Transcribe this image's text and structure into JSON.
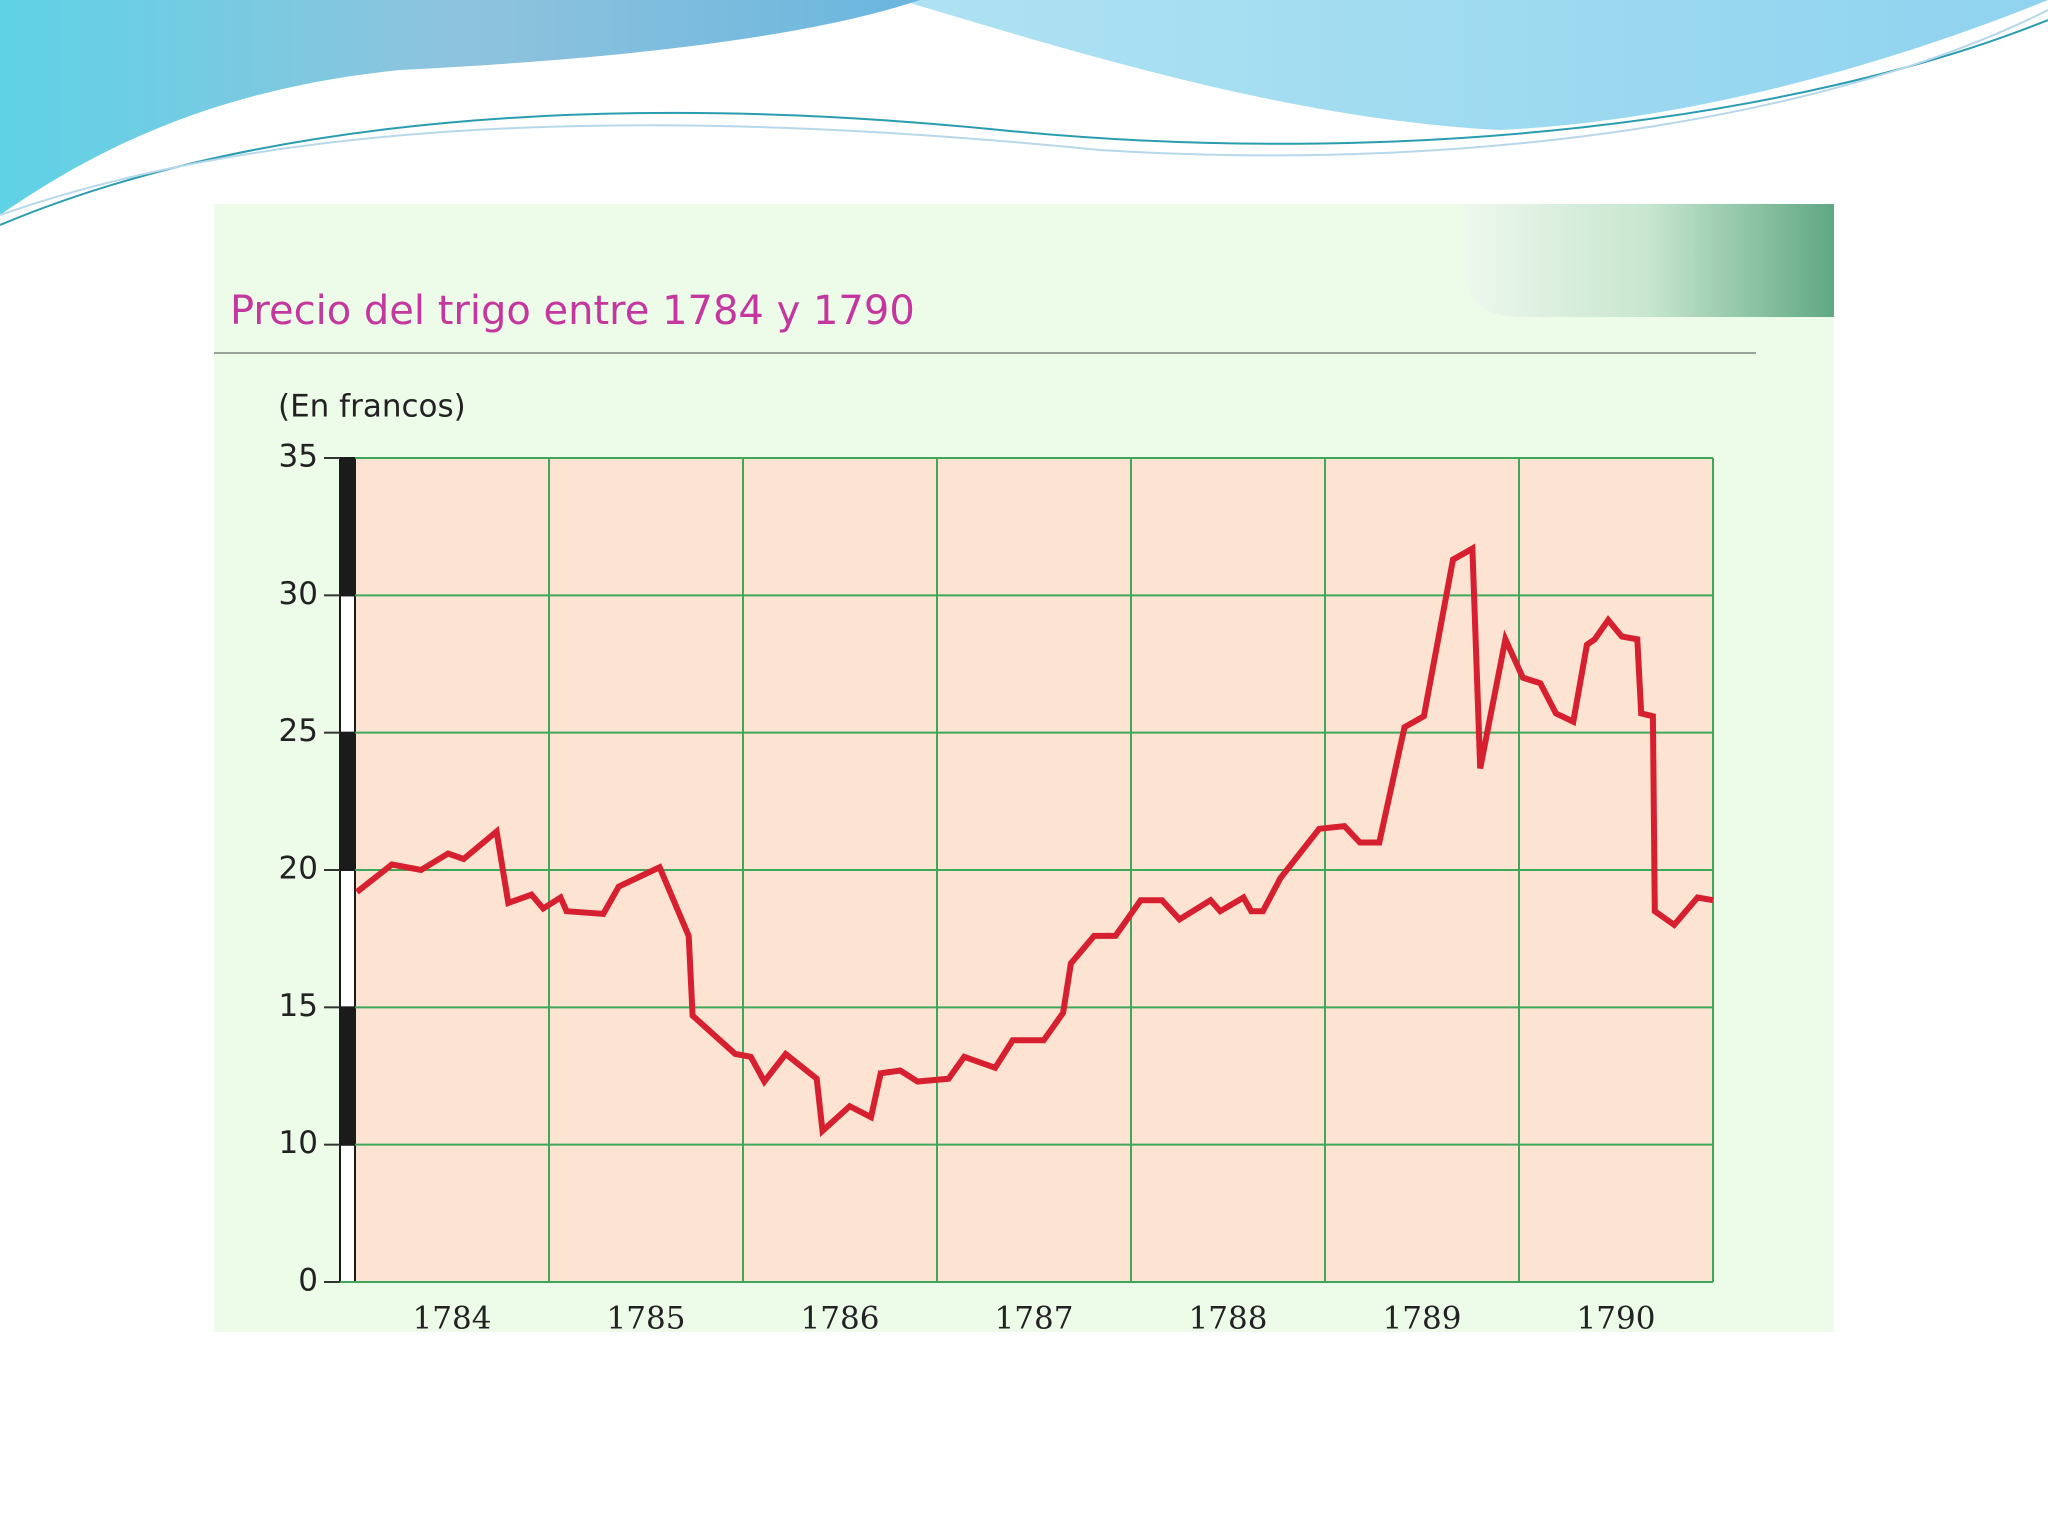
{
  "chart_data": {
    "type": "line",
    "title": "Precio del trigo entre 1784 y 1790",
    "y_label": "(En francos)",
    "categories": [
      "1784",
      "1785",
      "1786",
      "1787",
      "1788",
      "1789",
      "1790"
    ],
    "x": [
      1784.01,
      1784.19,
      1784.34,
      1784.48,
      1784.56,
      1784.73,
      1784.79,
      1784.91,
      1784.97,
      1785.06,
      1785.09,
      1785.28,
      1785.36,
      1785.57,
      1785.72,
      1785.74,
      1785.96,
      1786.04,
      1786.11,
      1786.22,
      1786.38,
      1786.41,
      1786.55,
      1786.66,
      1786.71,
      1786.81,
      1786.9,
      1787.06,
      1787.14,
      1787.3,
      1787.39,
      1787.55,
      1787.65,
      1787.69,
      1787.81,
      1787.92,
      1788.05,
      1788.16,
      1788.25,
      1788.41,
      1788.46,
      1788.58,
      1788.62,
      1788.68,
      1788.77,
      1788.97,
      1789.1,
      1789.18,
      1789.28,
      1789.41,
      1789.51,
      1789.66,
      1789.76,
      1789.8,
      1789.93,
      1790.02,
      1790.11,
      1790.19,
      1790.28,
      1790.35,
      1790.39,
      1790.46,
      1790.53,
      1790.61,
      1790.63,
      1790.69,
      1790.7,
      1790.8,
      1790.92,
      1791.0
    ],
    "values": [
      19.2,
      20.2,
      20.0,
      20.6,
      20.4,
      21.4,
      18.8,
      19.1,
      18.6,
      19.0,
      18.5,
      18.4,
      19.4,
      20.1,
      17.6,
      14.7,
      13.3,
      13.2,
      12.3,
      13.3,
      12.4,
      10.5,
      11.4,
      11.0,
      12.6,
      12.7,
      12.3,
      12.4,
      13.2,
      12.8,
      13.8,
      13.8,
      14.8,
      16.6,
      17.6,
      17.6,
      18.9,
      18.9,
      18.2,
      18.9,
      18.5,
      19.0,
      18.5,
      18.5,
      19.7,
      21.5,
      21.6,
      21.0,
      21.0,
      25.2,
      25.6,
      31.3,
      31.7,
      23.7,
      28.4,
      27.0,
      26.8,
      25.7,
      25.4,
      28.2,
      28.4,
      29.1,
      28.5,
      28.4,
      25.7,
      25.6,
      18.5,
      18.0,
      19.0,
      18.9
    ],
    "color": "#d7202f",
    "xlim": [
      1784,
      1791
    ],
    "ylim": [
      5,
      35
    ],
    "yticks": [
      10,
      15,
      20,
      25,
      30,
      35
    ],
    "y_break_label": "0",
    "grid": true
  }
}
